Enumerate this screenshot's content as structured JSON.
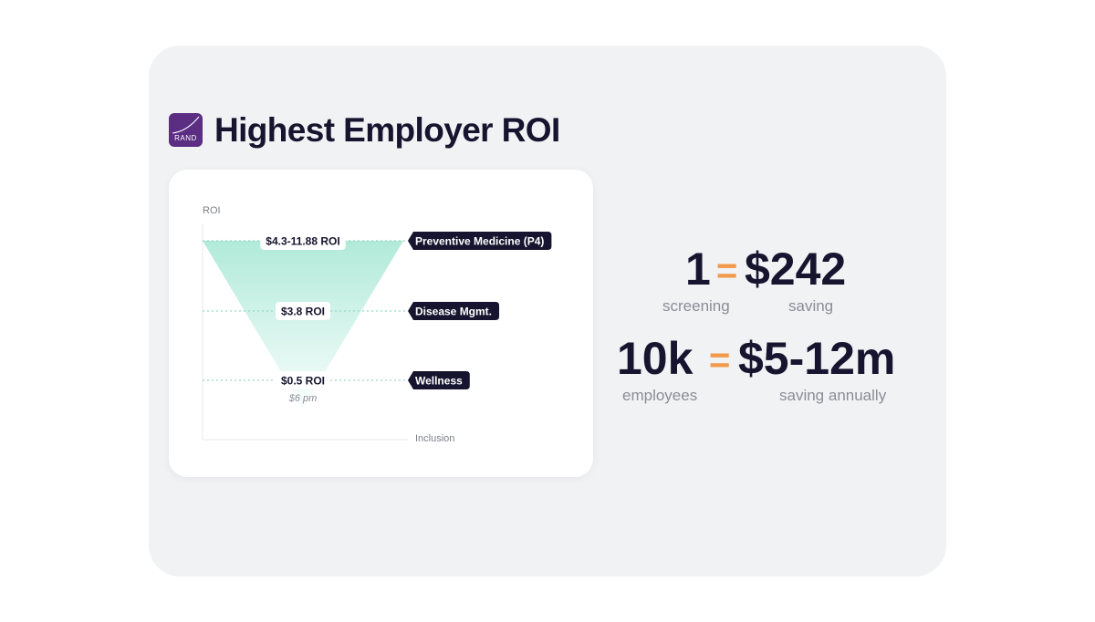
{
  "page": {
    "title": "Highest Employer ROI",
    "logo": {
      "icon": "rand-logo-icon",
      "text": "RAND",
      "color": "#5b2d83"
    }
  },
  "chart_data": {
    "type": "funnel",
    "ylabel": "ROI",
    "xlabel": "Inclusion",
    "levels": [
      {
        "value_label": "$4.3-11.88 ROI",
        "category": "Preventive Medicine (P4)",
        "note": ""
      },
      {
        "value_label": "$3.8 ROI",
        "category": "Disease Mgmt.",
        "note": ""
      },
      {
        "value_label": "$0.5 ROI",
        "category": "Wellness",
        "note": "$6 pm"
      }
    ],
    "colors": {
      "funnel": "#7ddcc0",
      "tag_bg": "#16142e",
      "tag_text": "#ffffff",
      "gridline": "#79d1b6"
    }
  },
  "stats": [
    {
      "left": "1",
      "equals": "=",
      "right": "$242",
      "left_caption": "screening",
      "right_caption": "saving"
    },
    {
      "left": "10k",
      "equals": "=",
      "right": "$5-12m",
      "left_caption": "employees",
      "right_caption": "saving annually"
    }
  ],
  "colors": {
    "accent": "#f2994a",
    "text_dark": "#16142e",
    "text_muted": "#8a8d96",
    "card_bg": "#f1f2f4"
  }
}
